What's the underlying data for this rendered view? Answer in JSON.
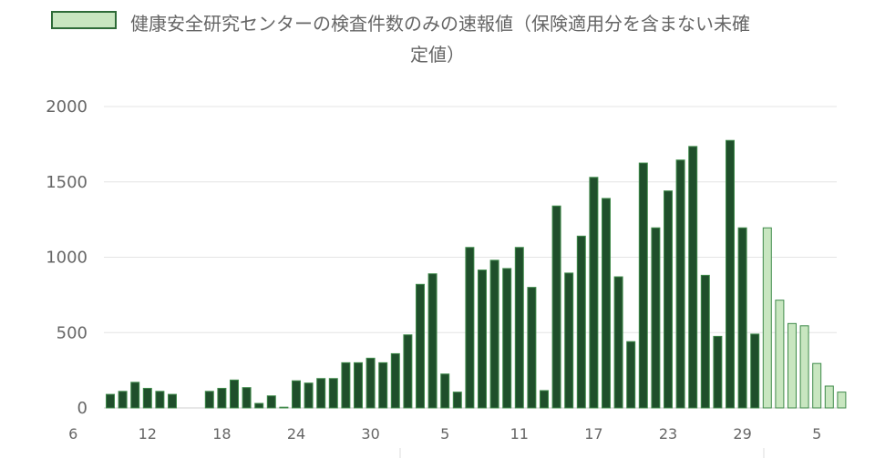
{
  "legend": {
    "label_line1": "健康安全研究センターの検査件数のみの速報値（保険適用分を含まない未確",
    "label_line2": "定値）",
    "swatch_fill": "#c8e6c0",
    "swatch_border": "#2e6b38"
  },
  "colors": {
    "confirmed_fill": "#1f4f2b",
    "preliminary_fill": "#c8e6c0",
    "bar_border": "#3f8a4a",
    "grid": "#e4e4e4"
  },
  "chart_data": {
    "type": "bar",
    "ylim": [
      0,
      2000
    ],
    "y_ticks": [
      0,
      500,
      1000,
      1500,
      2000
    ],
    "grid": true,
    "legend_position": "top",
    "x_tick_labels": [
      "6",
      "12",
      "18",
      "24",
      "30",
      "5",
      "11",
      "17",
      "23",
      "29",
      "5"
    ],
    "x_tick_index_offset": -3,
    "series": [
      {
        "name": "",
        "values": [
          90,
          110,
          170,
          130,
          110,
          90,
          null,
          null,
          110,
          130,
          185,
          135,
          30,
          80,
          5,
          180,
          165,
          195,
          195,
          300,
          300,
          330,
          300,
          360,
          485,
          820,
          890,
          225,
          105,
          1065,
          915,
          980,
          925,
          1065,
          800,
          115,
          1340,
          895,
          1140,
          1530,
          1390,
          870,
          440,
          1625,
          1195,
          1440,
          1645,
          1735,
          880,
          475,
          1775,
          1195,
          490
        ]
      },
      {
        "name": "健康安全研究センターの検査件数のみの速報値（保険適用分を含まない未確定値）",
        "values": [
          1195,
          715,
          560,
          545,
          295,
          145,
          105
        ]
      }
    ]
  }
}
